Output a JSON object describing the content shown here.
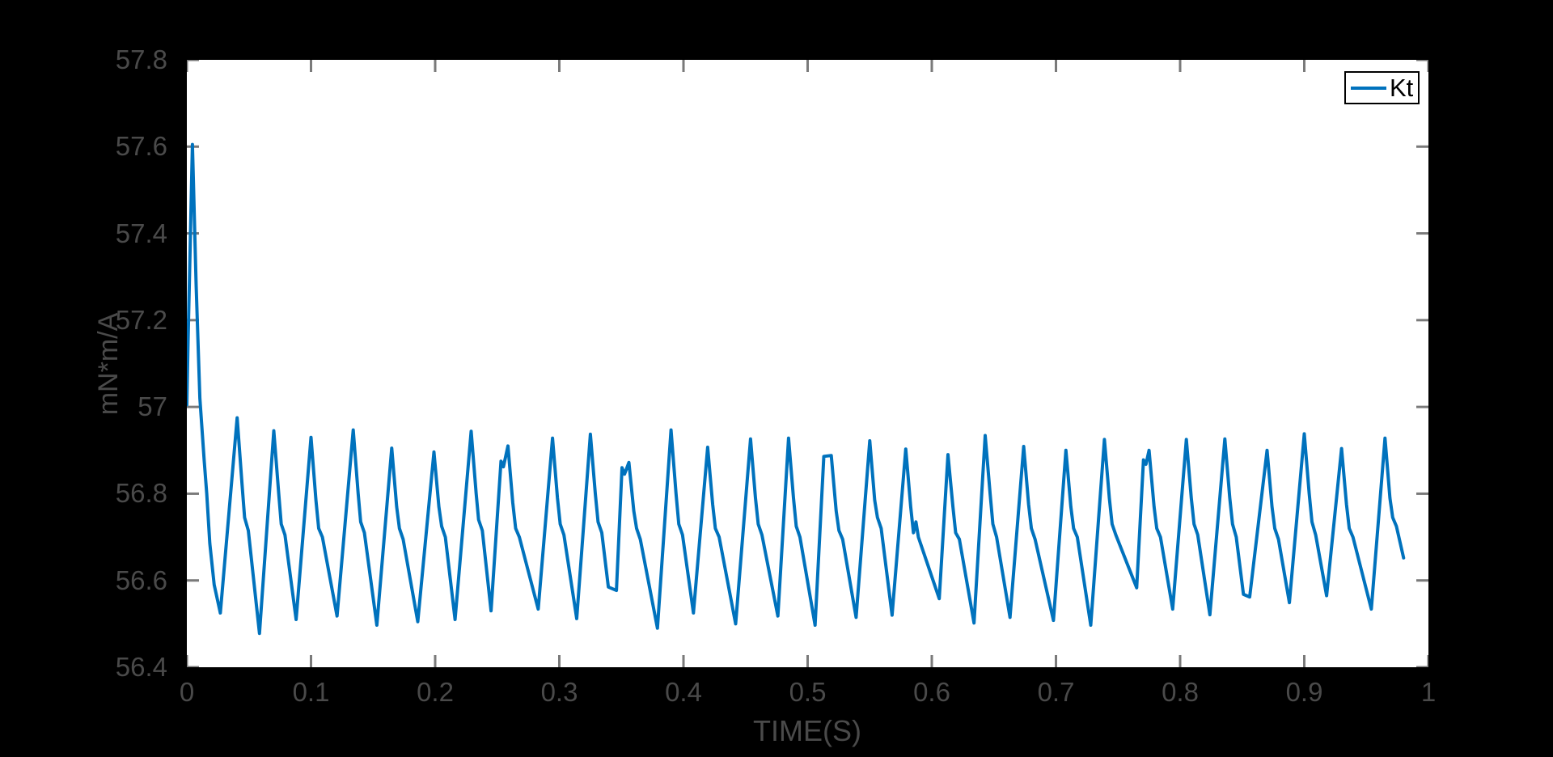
{
  "styles": {
    "figure_background": "#000000",
    "plot_background": "#ffffff",
    "line_color": "#0072BD",
    "tick_color": "#7a7a7a",
    "label_color": "#4a4a4a",
    "legend_border_color": "#000000",
    "legend_text_color": "#000000",
    "line_width": 4,
    "tick_length": 15
  },
  "chart_data": {
    "type": "line",
    "title": "",
    "xlabel": "TIME(S)",
    "ylabel": "mN*m/A",
    "xlim": [
      0,
      1
    ],
    "ylim": [
      56.4,
      57.8
    ],
    "grid": false,
    "x_ticks": [
      0,
      0.1,
      0.2,
      0.3,
      0.4,
      0.5,
      0.6,
      0.7,
      0.8,
      0.9,
      1
    ],
    "x_tick_labels": [
      "0",
      "0.1",
      "0.2",
      "0.3",
      "0.4",
      "0.5",
      "0.6",
      "0.7",
      "0.8",
      "0.9",
      "1"
    ],
    "y_ticks": [
      56.4,
      56.6,
      56.8,
      57,
      57.2,
      57.4,
      57.6,
      57.8
    ],
    "y_tick_labels": [
      "56.4",
      "56.6",
      "56.8",
      "57",
      "57.2",
      "57.4",
      "57.6",
      "57.8"
    ],
    "legend": {
      "position": "top-right",
      "entries": [
        {
          "label": "Kt",
          "color": "#0072BD"
        }
      ]
    },
    "series": [
      {
        "name": "Kt",
        "color": "#0072BD",
        "points": [
          [
            0.0,
            57.005
          ],
          [
            0.001,
            57.15
          ],
          [
            0.0045,
            57.605
          ],
          [
            0.0075,
            57.28
          ],
          [
            0.0105,
            57.02
          ],
          [
            0.014,
            56.875
          ],
          [
            0.016,
            56.8
          ],
          [
            0.0185,
            56.685
          ],
          [
            0.022,
            56.59
          ],
          [
            0.027,
            56.525
          ],
          [
            0.0405,
            56.975
          ],
          [
            0.0445,
            56.82
          ],
          [
            0.0465,
            56.745
          ],
          [
            0.0495,
            56.715
          ],
          [
            0.0585,
            56.478
          ],
          [
            0.07,
            56.945
          ],
          [
            0.074,
            56.8
          ],
          [
            0.076,
            56.73
          ],
          [
            0.079,
            56.705
          ],
          [
            0.088,
            56.51
          ],
          [
            0.1,
            56.93
          ],
          [
            0.104,
            56.785
          ],
          [
            0.1062,
            56.72
          ],
          [
            0.1092,
            56.7
          ],
          [
            0.121,
            56.518
          ],
          [
            0.134,
            56.947
          ],
          [
            0.138,
            56.8
          ],
          [
            0.14,
            56.735
          ],
          [
            0.143,
            56.71
          ],
          [
            0.153,
            56.497
          ],
          [
            0.165,
            56.905
          ],
          [
            0.169,
            56.77
          ],
          [
            0.1712,
            56.72
          ],
          [
            0.1742,
            56.695
          ],
          [
            0.186,
            56.505
          ],
          [
            0.199,
            56.896
          ],
          [
            0.203,
            56.77
          ],
          [
            0.2052,
            56.725
          ],
          [
            0.2082,
            56.7
          ],
          [
            0.216,
            56.51
          ],
          [
            0.229,
            56.944
          ],
          [
            0.233,
            56.8
          ],
          [
            0.235,
            56.74
          ],
          [
            0.238,
            56.715
          ],
          [
            0.245,
            56.53
          ],
          [
            0.253,
            56.875
          ],
          [
            0.255,
            56.862
          ],
          [
            0.2586,
            56.91
          ],
          [
            0.2625,
            56.78
          ],
          [
            0.2648,
            56.72
          ],
          [
            0.2678,
            56.7
          ],
          [
            0.283,
            56.534
          ],
          [
            0.2945,
            56.928
          ],
          [
            0.2985,
            56.79
          ],
          [
            0.3007,
            56.73
          ],
          [
            0.3037,
            56.705
          ],
          [
            0.314,
            56.512
          ],
          [
            0.325,
            56.937
          ],
          [
            0.329,
            56.8
          ],
          [
            0.3312,
            56.735
          ],
          [
            0.3342,
            56.71
          ],
          [
            0.3395,
            56.585
          ],
          [
            0.346,
            56.577
          ],
          [
            0.3505,
            56.86
          ],
          [
            0.3525,
            56.845
          ],
          [
            0.356,
            56.872
          ],
          [
            0.36,
            56.76
          ],
          [
            0.3622,
            56.72
          ],
          [
            0.3652,
            56.695
          ],
          [
            0.379,
            56.49
          ],
          [
            0.39,
            56.947
          ],
          [
            0.394,
            56.8
          ],
          [
            0.3962,
            56.73
          ],
          [
            0.3992,
            56.705
          ],
          [
            0.408,
            56.525
          ],
          [
            0.4195,
            56.907
          ],
          [
            0.4235,
            56.775
          ],
          [
            0.4257,
            56.72
          ],
          [
            0.4287,
            56.7
          ],
          [
            0.442,
            56.5
          ],
          [
            0.454,
            56.926
          ],
          [
            0.458,
            56.79
          ],
          [
            0.4602,
            56.73
          ],
          [
            0.4632,
            56.705
          ],
          [
            0.476,
            56.518
          ],
          [
            0.4846,
            56.928
          ],
          [
            0.4886,
            56.79
          ],
          [
            0.4908,
            56.725
          ],
          [
            0.4938,
            56.7
          ],
          [
            0.506,
            56.497
          ],
          [
            0.513,
            56.886
          ],
          [
            0.519,
            56.888
          ],
          [
            0.523,
            56.76
          ],
          [
            0.5252,
            56.715
          ],
          [
            0.5282,
            56.695
          ],
          [
            0.539,
            56.515
          ],
          [
            0.55,
            56.922
          ],
          [
            0.554,
            56.785
          ],
          [
            0.5562,
            56.745
          ],
          [
            0.5592,
            56.72
          ],
          [
            0.568,
            56.52
          ],
          [
            0.579,
            56.903
          ],
          [
            0.583,
            56.77
          ],
          [
            0.5852,
            56.71
          ],
          [
            0.5872,
            56.735
          ],
          [
            0.5892,
            56.7
          ],
          [
            0.606,
            56.558
          ],
          [
            0.613,
            56.89
          ],
          [
            0.617,
            56.77
          ],
          [
            0.6192,
            56.71
          ],
          [
            0.6222,
            56.695
          ],
          [
            0.634,
            56.502
          ],
          [
            0.643,
            56.934
          ],
          [
            0.647,
            56.8
          ],
          [
            0.6492,
            56.73
          ],
          [
            0.6522,
            56.7
          ],
          [
            0.663,
            56.515
          ],
          [
            0.674,
            56.909
          ],
          [
            0.678,
            56.775
          ],
          [
            0.6802,
            56.72
          ],
          [
            0.6832,
            56.695
          ],
          [
            0.698,
            56.508
          ],
          [
            0.708,
            56.9
          ],
          [
            0.712,
            56.77
          ],
          [
            0.7142,
            56.72
          ],
          [
            0.7172,
            56.7
          ],
          [
            0.728,
            56.497
          ],
          [
            0.739,
            56.925
          ],
          [
            0.743,
            56.79
          ],
          [
            0.7452,
            56.73
          ],
          [
            0.7482,
            56.705
          ],
          [
            0.765,
            56.583
          ],
          [
            0.7705,
            56.878
          ],
          [
            0.7725,
            56.868
          ],
          [
            0.775,
            56.9
          ],
          [
            0.779,
            56.77
          ],
          [
            0.7812,
            56.72
          ],
          [
            0.7842,
            56.7
          ],
          [
            0.794,
            56.534
          ],
          [
            0.805,
            56.925
          ],
          [
            0.809,
            56.79
          ],
          [
            0.8112,
            56.73
          ],
          [
            0.8142,
            56.705
          ],
          [
            0.824,
            56.521
          ],
          [
            0.836,
            56.926
          ],
          [
            0.84,
            56.79
          ],
          [
            0.8422,
            56.73
          ],
          [
            0.8452,
            56.7
          ],
          [
            0.851,
            56.568
          ],
          [
            0.856,
            56.562
          ],
          [
            0.87,
            56.9
          ],
          [
            0.874,
            56.77
          ],
          [
            0.8762,
            56.72
          ],
          [
            0.8792,
            56.695
          ],
          [
            0.888,
            56.549
          ],
          [
            0.9,
            56.938
          ],
          [
            0.904,
            56.8
          ],
          [
            0.9062,
            56.735
          ],
          [
            0.9092,
            56.705
          ],
          [
            0.918,
            56.565
          ],
          [
            0.93,
            56.904
          ],
          [
            0.934,
            56.775
          ],
          [
            0.9362,
            56.72
          ],
          [
            0.9392,
            56.7
          ],
          [
            0.954,
            56.534
          ],
          [
            0.965,
            56.928
          ],
          [
            0.969,
            56.79
          ],
          [
            0.9712,
            56.745
          ],
          [
            0.9742,
            56.725
          ],
          [
            0.98,
            56.652
          ]
        ]
      }
    ]
  }
}
